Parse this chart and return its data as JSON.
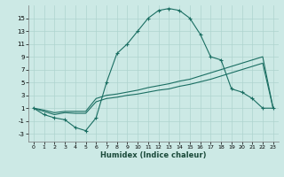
{
  "xlabel": "Humidex (Indice chaleur)",
  "background_color": "#cce9e5",
  "grid_color": "#aed4cf",
  "line_color": "#1a6e62",
  "x_ticks": [
    0,
    1,
    2,
    3,
    4,
    5,
    6,
    7,
    8,
    9,
    10,
    11,
    12,
    13,
    14,
    15,
    16,
    17,
    18,
    19,
    20,
    21,
    22,
    23
  ],
  "y_ticks": [
    -3,
    -1,
    1,
    3,
    5,
    7,
    9,
    11,
    13,
    15
  ],
  "ylim": [
    -4.2,
    17.0
  ],
  "xlim": [
    -0.5,
    23.5
  ],
  "curve1_x": [
    0,
    1,
    2,
    3,
    4,
    5,
    6,
    7,
    8,
    9,
    10,
    11,
    12,
    13,
    14,
    15,
    16,
    17,
    18,
    19,
    20,
    21,
    22,
    23
  ],
  "curve1_y": [
    1,
    0,
    -0.5,
    -0.8,
    -2.0,
    -2.5,
    -0.5,
    5.0,
    9.5,
    11.0,
    13.0,
    15.0,
    16.2,
    16.5,
    16.2,
    15.0,
    12.5,
    9.0,
    8.5,
    4.0,
    3.5,
    2.5,
    1.0,
    1.0
  ],
  "curve2_x": [
    0,
    1,
    2,
    3,
    4,
    5,
    6,
    7,
    8,
    9,
    10,
    11,
    12,
    13,
    14,
    15,
    16,
    17,
    18,
    19,
    20,
    21,
    22,
    23
  ],
  "curve2_y": [
    1.0,
    0.7,
    0.3,
    0.5,
    0.5,
    0.5,
    2.5,
    3.0,
    3.2,
    3.5,
    3.8,
    4.2,
    4.5,
    4.8,
    5.2,
    5.5,
    6.0,
    6.5,
    7.0,
    7.5,
    8.0,
    8.5,
    9.0,
    1.0
  ],
  "curve3_x": [
    0,
    1,
    2,
    3,
    4,
    5,
    6,
    7,
    8,
    9,
    10,
    11,
    12,
    13,
    14,
    15,
    16,
    17,
    18,
    19,
    20,
    21,
    22,
    23
  ],
  "curve3_y": [
    1.0,
    0.5,
    0.0,
    0.3,
    0.2,
    0.2,
    2.0,
    2.5,
    2.7,
    3.0,
    3.2,
    3.5,
    3.8,
    4.0,
    4.4,
    4.7,
    5.1,
    5.5,
    6.0,
    6.5,
    7.0,
    7.5,
    8.0,
    1.0
  ]
}
